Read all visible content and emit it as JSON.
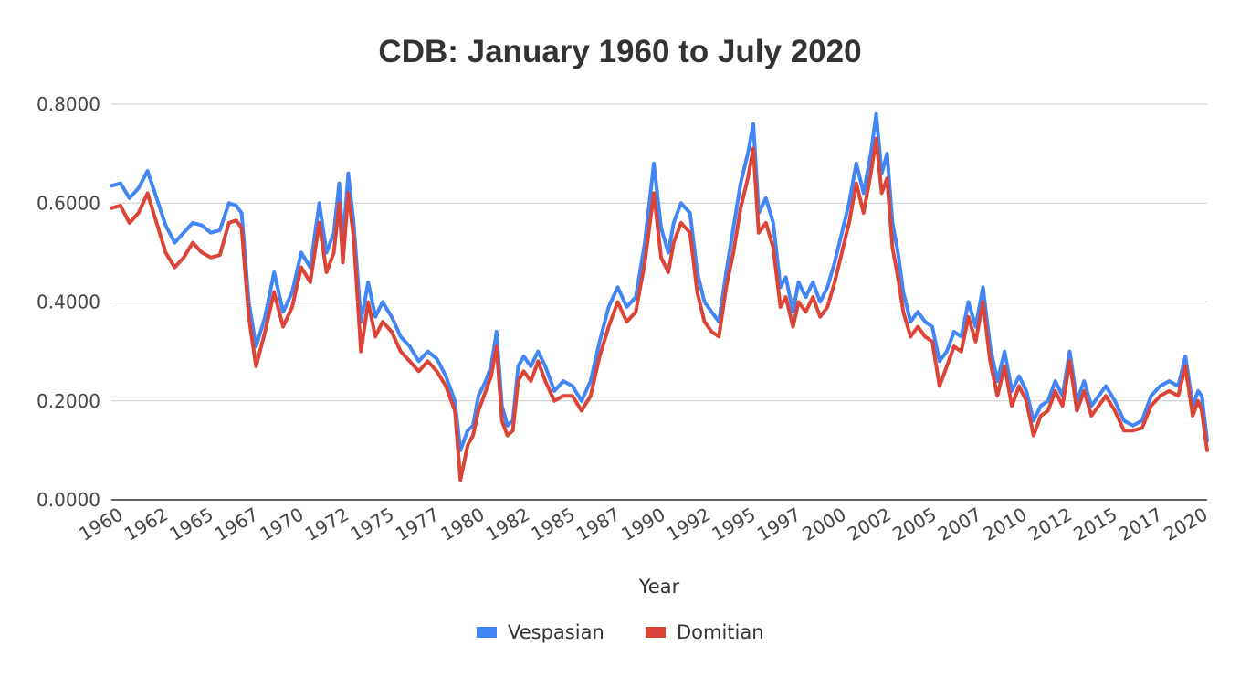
{
  "chart_data": {
    "type": "line",
    "title": "CDB: January 1960 to July 2020",
    "xlabel": "Year",
    "ylabel": "",
    "ylim": [
      0,
      0.8
    ],
    "yticks": [
      "0.0000",
      "0.2000",
      "0.4000",
      "0.6000",
      "0.8000"
    ],
    "xlim": [
      1960,
      2020.6
    ],
    "xticks": [
      "1960",
      "1962",
      "1965",
      "1967",
      "1970",
      "1972",
      "1975",
      "1977",
      "1980",
      "1982",
      "1985",
      "1987",
      "1990",
      "1992",
      "1995",
      "1997",
      "2000",
      "2002",
      "2005",
      "2007",
      "2010",
      "2012",
      "2015",
      "2017",
      "2020"
    ],
    "legend_position": "bottom",
    "colors": {
      "Vespasian": "#4285f4",
      "Domitian": "#db4437",
      "grid": "#cccccc",
      "text": "#333333"
    },
    "x": [
      1960.0,
      1960.5,
      1961.0,
      1961.5,
      1962.0,
      1962.5,
      1963.0,
      1963.5,
      1964.0,
      1964.5,
      1965.0,
      1965.5,
      1966.0,
      1966.5,
      1966.9,
      1967.2,
      1967.6,
      1968.0,
      1968.5,
      1969.0,
      1969.5,
      1970.0,
      1970.5,
      1971.0,
      1971.5,
      1971.9,
      1972.3,
      1972.6,
      1972.8,
      1973.1,
      1973.4,
      1973.8,
      1974.2,
      1974.6,
      1975.0,
      1975.5,
      1976.0,
      1976.5,
      1977.0,
      1977.5,
      1978.0,
      1978.5,
      1979.0,
      1979.3,
      1979.7,
      1980.0,
      1980.3,
      1980.7,
      1981.0,
      1981.3,
      1981.6,
      1981.9,
      1982.2,
      1982.5,
      1982.8,
      1983.2,
      1983.6,
      1984.0,
      1984.5,
      1985.0,
      1985.5,
      1986.0,
      1986.5,
      1987.0,
      1987.5,
      1988.0,
      1988.5,
      1989.0,
      1989.5,
      1990.0,
      1990.4,
      1990.8,
      1991.1,
      1991.5,
      1992.0,
      1992.4,
      1992.8,
      1993.2,
      1993.6,
      1994.0,
      1994.4,
      1994.8,
      1995.2,
      1995.5,
      1995.8,
      1996.2,
      1996.6,
      1997.0,
      1997.3,
      1997.7,
      1998.0,
      1998.4,
      1998.8,
      1999.2,
      1999.6,
      2000.0,
      2000.4,
      2000.8,
      2001.2,
      2001.6,
      2002.0,
      2002.3,
      2002.6,
      2002.9,
      2003.2,
      2003.5,
      2003.8,
      2004.2,
      2004.6,
      2005.0,
      2005.4,
      2005.8,
      2006.2,
      2006.6,
      2007.0,
      2007.4,
      2007.8,
      2008.2,
      2008.6,
      2009.0,
      2009.4,
      2009.8,
      2010.2,
      2010.6,
      2011.0,
      2011.4,
      2011.8,
      2012.2,
      2012.6,
      2013.0,
      2013.4,
      2013.8,
      2014.2,
      2014.6,
      2015.0,
      2015.5,
      2016.0,
      2016.5,
      2017.0,
      2017.5,
      2018.0,
      2018.5,
      2019.0,
      2019.4,
      2019.8,
      2020.1,
      2020.3,
      2020.6
    ],
    "series": [
      {
        "name": "Vespasian",
        "values": [
          0.635,
          0.64,
          0.61,
          0.63,
          0.665,
          0.61,
          0.555,
          0.52,
          0.54,
          0.56,
          0.555,
          0.54,
          0.545,
          0.6,
          0.595,
          0.58,
          0.4,
          0.31,
          0.37,
          0.46,
          0.38,
          0.42,
          0.5,
          0.47,
          0.6,
          0.5,
          0.54,
          0.64,
          0.52,
          0.66,
          0.56,
          0.36,
          0.44,
          0.37,
          0.4,
          0.37,
          0.33,
          0.31,
          0.28,
          0.3,
          0.285,
          0.25,
          0.2,
          0.1,
          0.14,
          0.15,
          0.21,
          0.24,
          0.27,
          0.34,
          0.19,
          0.15,
          0.16,
          0.27,
          0.29,
          0.27,
          0.3,
          0.27,
          0.22,
          0.24,
          0.23,
          0.2,
          0.24,
          0.32,
          0.39,
          0.43,
          0.39,
          0.41,
          0.52,
          0.68,
          0.55,
          0.5,
          0.56,
          0.6,
          0.58,
          0.46,
          0.4,
          0.38,
          0.36,
          0.46,
          0.55,
          0.64,
          0.7,
          0.76,
          0.58,
          0.61,
          0.56,
          0.43,
          0.45,
          0.38,
          0.44,
          0.41,
          0.44,
          0.4,
          0.43,
          0.48,
          0.54,
          0.6,
          0.68,
          0.62,
          0.7,
          0.78,
          0.66,
          0.7,
          0.56,
          0.5,
          0.42,
          0.36,
          0.38,
          0.36,
          0.35,
          0.28,
          0.3,
          0.34,
          0.33,
          0.4,
          0.35,
          0.43,
          0.31,
          0.24,
          0.3,
          0.22,
          0.25,
          0.22,
          0.16,
          0.19,
          0.2,
          0.24,
          0.21,
          0.3,
          0.2,
          0.24,
          0.19,
          0.21,
          0.23,
          0.2,
          0.16,
          0.15,
          0.16,
          0.21,
          0.23,
          0.24,
          0.23,
          0.29,
          0.19,
          0.22,
          0.21,
          0.12
        ]
      },
      {
        "name": "Domitian",
        "values": [
          0.59,
          0.595,
          0.56,
          0.58,
          0.62,
          0.56,
          0.5,
          0.47,
          0.49,
          0.52,
          0.5,
          0.49,
          0.495,
          0.56,
          0.565,
          0.55,
          0.37,
          0.27,
          0.34,
          0.42,
          0.35,
          0.39,
          0.47,
          0.44,
          0.56,
          0.46,
          0.5,
          0.6,
          0.48,
          0.62,
          0.53,
          0.3,
          0.4,
          0.33,
          0.36,
          0.34,
          0.3,
          0.28,
          0.26,
          0.28,
          0.26,
          0.23,
          0.18,
          0.04,
          0.11,
          0.13,
          0.18,
          0.22,
          0.25,
          0.31,
          0.16,
          0.13,
          0.14,
          0.24,
          0.26,
          0.24,
          0.28,
          0.24,
          0.2,
          0.21,
          0.21,
          0.18,
          0.21,
          0.29,
          0.35,
          0.4,
          0.36,
          0.38,
          0.48,
          0.62,
          0.49,
          0.46,
          0.52,
          0.56,
          0.54,
          0.42,
          0.36,
          0.34,
          0.33,
          0.43,
          0.5,
          0.59,
          0.65,
          0.71,
          0.54,
          0.56,
          0.51,
          0.39,
          0.41,
          0.35,
          0.4,
          0.38,
          0.41,
          0.37,
          0.39,
          0.44,
          0.5,
          0.56,
          0.64,
          0.58,
          0.66,
          0.73,
          0.62,
          0.65,
          0.51,
          0.45,
          0.38,
          0.33,
          0.35,
          0.33,
          0.32,
          0.23,
          0.27,
          0.31,
          0.3,
          0.37,
          0.32,
          0.4,
          0.28,
          0.21,
          0.27,
          0.19,
          0.23,
          0.2,
          0.13,
          0.17,
          0.18,
          0.22,
          0.19,
          0.28,
          0.18,
          0.22,
          0.17,
          0.19,
          0.21,
          0.18,
          0.14,
          0.14,
          0.145,
          0.19,
          0.21,
          0.22,
          0.21,
          0.27,
          0.17,
          0.2,
          0.18,
          0.1
        ]
      }
    ]
  }
}
